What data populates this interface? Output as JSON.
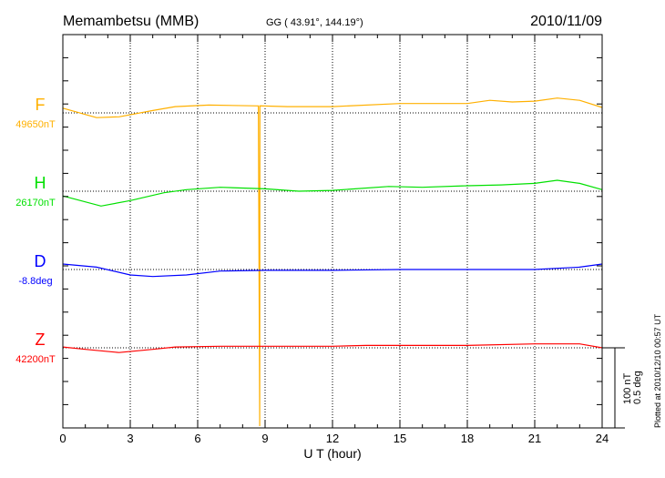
{
  "chart_data": {
    "type": "line",
    "title": "Memambetsu (MMB)",
    "subtitle": "GG ( 43.91°, 144.19°)",
    "date": "2010/11/09",
    "xlabel": "U T (hour)",
    "xlim": [
      0,
      24
    ],
    "xticks": [
      "0",
      "3",
      "6",
      "9",
      "12",
      "15",
      "18",
      "21",
      "24"
    ],
    "scale_label_1": "100 nT",
    "scale_label_2": "0.5 deg",
    "plotted_note": "Plotted at 2010/12/10 00:57 UT",
    "grid": true,
    "series": [
      {
        "name": "F",
        "baseline_label": "49650nT",
        "color": "#ffb000",
        "x": [
          0,
          1.5,
          2.5,
          4,
          5,
          6.5,
          8.7,
          8.76,
          8.77,
          10,
          12,
          15,
          18,
          19,
          20,
          21,
          22,
          23,
          24
        ],
        "y": [
          6,
          -6,
          -5,
          3,
          8,
          10,
          9,
          -400,
          9,
          8,
          8,
          12,
          12,
          16,
          14,
          15,
          19,
          16,
          7
        ]
      },
      {
        "name": "H",
        "baseline_label": "26170nT",
        "color": "#00e000",
        "x": [
          0,
          1.7,
          3,
          4.5,
          5.5,
          7,
          9,
          10.5,
          12,
          14.5,
          16,
          18,
          19.5,
          21,
          22,
          23,
          24
        ],
        "y": [
          -6,
          -19,
          -12,
          -2,
          2,
          5,
          3,
          0,
          1,
          6,
          5,
          7,
          8,
          10,
          14,
          10,
          2
        ]
      },
      {
        "name": "D",
        "baseline_label": "-8.8deg",
        "color": "#0000ff",
        "x": [
          0,
          1.5,
          3,
          4,
          5.5,
          7,
          9,
          12,
          15,
          18,
          21,
          23,
          24
        ],
        "y": [
          7,
          3,
          -7,
          -9,
          -7,
          -2,
          -1,
          -1,
          0,
          0,
          0,
          3,
          7
        ]
      },
      {
        "name": "Z",
        "baseline_label": "42200nT",
        "color": "#ff0000",
        "x": [
          0,
          1,
          2.5,
          4,
          5,
          7,
          12,
          13.5,
          18,
          21,
          23,
          24
        ],
        "y": [
          1,
          -2,
          -6,
          -2,
          1,
          2,
          2,
          3,
          3,
          5,
          5,
          0
        ]
      }
    ]
  }
}
